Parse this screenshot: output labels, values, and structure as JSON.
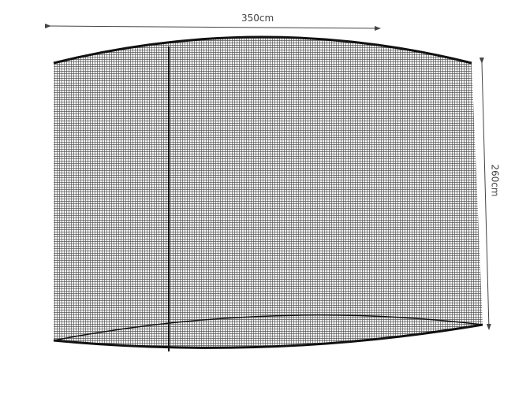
{
  "dimensions": {
    "width_label": "350cm",
    "height_label": "260cm"
  },
  "colors": {
    "mesh": "#555555",
    "frame": "#111111",
    "arrow": "#444444"
  }
}
